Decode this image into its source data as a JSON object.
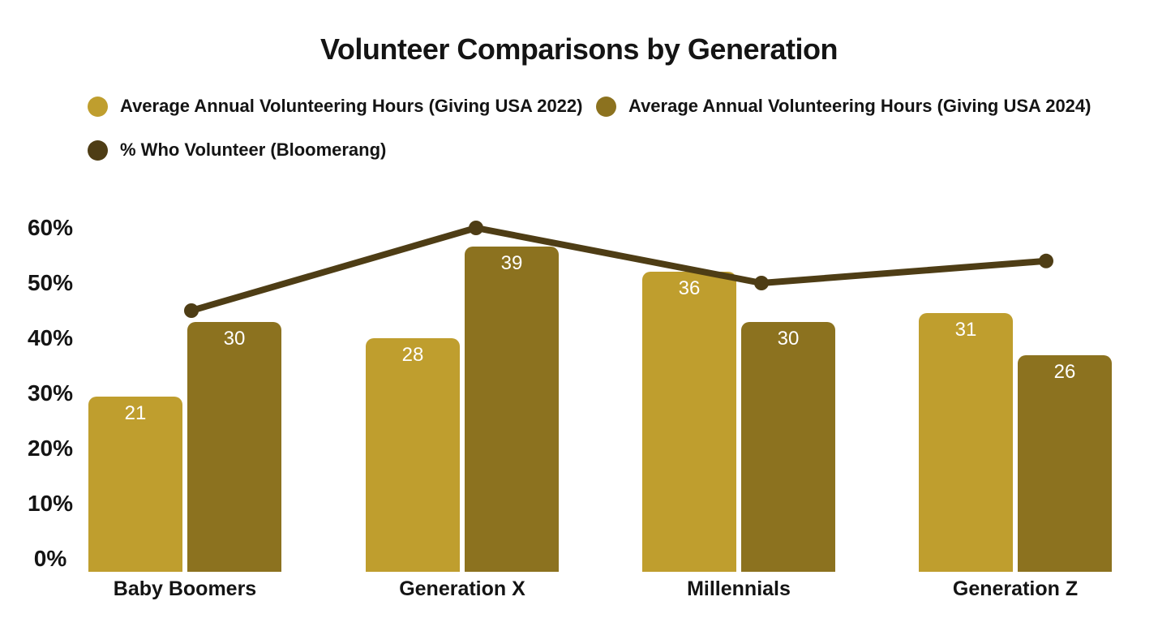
{
  "chart_data": {
    "type": "bar",
    "subtype": "grouped bars with overlay line",
    "title": "Volunteer Comparisons by Generation",
    "categories": [
      "Baby Boomers",
      "Generation X",
      "Millennials",
      "Generation Z"
    ],
    "series": [
      {
        "name": "Average Annual Volunteering Hours (Giving USA 2022)",
        "type": "bar",
        "color": "#BF9E2E",
        "values": [
          21,
          28,
          36,
          31
        ]
      },
      {
        "name": "Average Annual Volunteering Hours (Giving USA 2024)",
        "type": "bar",
        "color": "#8C721F",
        "values": [
          30,
          39,
          30,
          26
        ]
      },
      {
        "name": "% Who Volunteer (Bloomerang)",
        "type": "line",
        "color": "#4E3D15",
        "values": [
          45,
          60,
          50,
          54
        ]
      }
    ],
    "y_axis": {
      "ticks": [
        "0%",
        "10%",
        "20%",
        "30%",
        "40%",
        "50%",
        "60%"
      ],
      "min": 0,
      "max": 60,
      "unit": "%"
    },
    "bar_value_labels": {
      "color": "#FFFFFF",
      "position": "inside-top"
    },
    "gridlines": false,
    "legend_position": "top-left",
    "background": "#FFFFFF",
    "text_color": "#141414"
  }
}
